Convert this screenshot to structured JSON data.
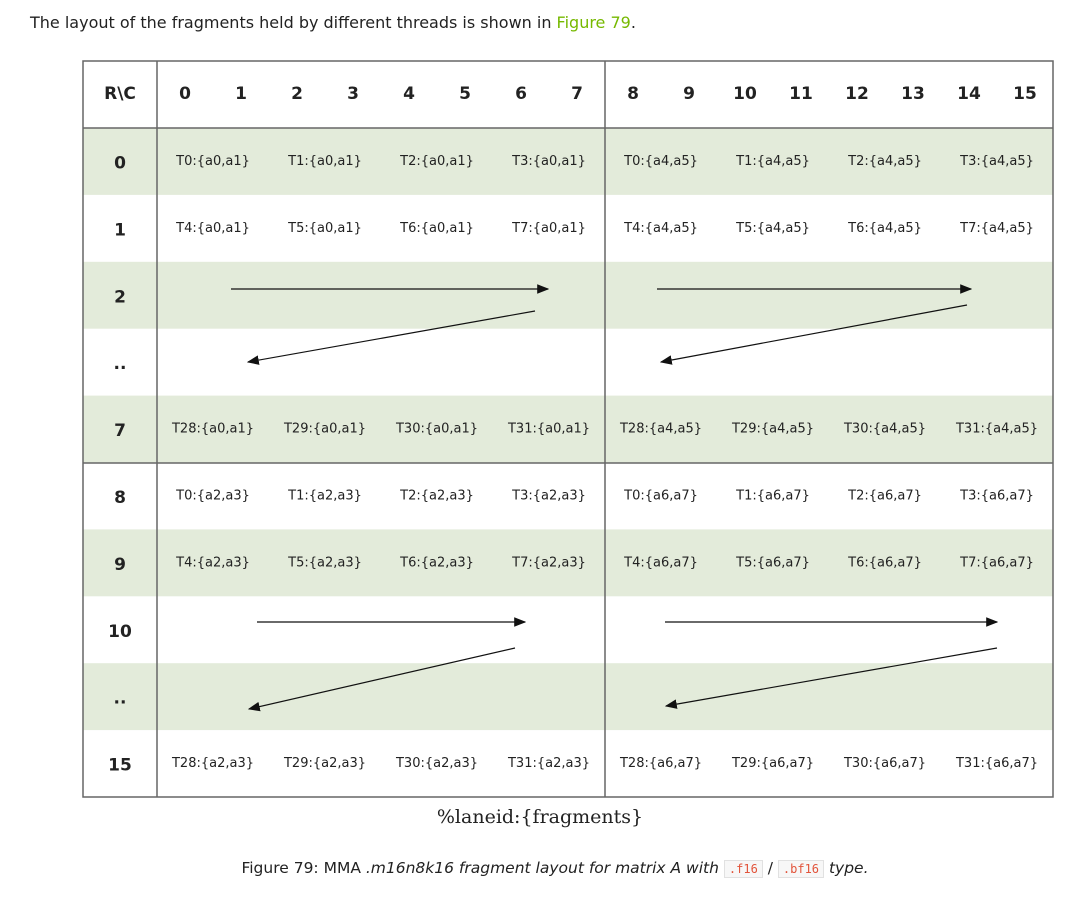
{
  "intro": {
    "text": "The layout of the fragments held by different threads is shown in ",
    "link": "Figure 79",
    "end": "."
  },
  "table": {
    "corner": "R\\C",
    "columns": [
      "0",
      "1",
      "2",
      "3",
      "4",
      "5",
      "6",
      "7",
      "8",
      "9",
      "10",
      "11",
      "12",
      "13",
      "14",
      "15"
    ],
    "rows": [
      {
        "label": "0",
        "cells": [
          "T0:{a0,a1}",
          "T1:{a0,a1}",
          "T2:{a0,a1}",
          "T3:{a0,a1}",
          "T0:{a4,a5}",
          "T1:{a4,a5}",
          "T2:{a4,a5}",
          "T3:{a4,a5}"
        ]
      },
      {
        "label": "1",
        "cells": [
          "T4:{a0,a1}",
          "T5:{a0,a1}",
          "T6:{a0,a1}",
          "T7:{a0,a1}",
          "T4:{a4,a5}",
          "T5:{a4,a5}",
          "T6:{a4,a5}",
          "T7:{a4,a5}"
        ]
      },
      {
        "label": "2"
      },
      {
        "label": ".."
      },
      {
        "label": "7",
        "cells": [
          "T28:{a0,a1}",
          "T29:{a0,a1}",
          "T30:{a0,a1}",
          "T31:{a0,a1}",
          "T28:{a4,a5}",
          "T29:{a4,a5}",
          "T30:{a4,a5}",
          "T31:{a4,a5}"
        ]
      },
      {
        "label": "8",
        "cells": [
          "T0:{a2,a3}",
          "T1:{a2,a3}",
          "T2:{a2,a3}",
          "T3:{a2,a3}",
          "T0:{a6,a7}",
          "T1:{a6,a7}",
          "T2:{a6,a7}",
          "T3:{a6,a7}"
        ]
      },
      {
        "label": "9",
        "cells": [
          "T4:{a2,a3}",
          "T5:{a2,a3}",
          "T6:{a2,a3}",
          "T7:{a2,a3}",
          "T4:{a6,a7}",
          "T5:{a6,a7}",
          "T6:{a6,a7}",
          "T7:{a6,a7}"
        ]
      },
      {
        "label": "10"
      },
      {
        "label": ".."
      },
      {
        "label": "15",
        "cells": [
          "T28:{a2,a3}",
          "T29:{a2,a3}",
          "T30:{a2,a3}",
          "T31:{a2,a3}",
          "T28:{a6,a7}",
          "T29:{a6,a7}",
          "T30:{a6,a7}",
          "T31:{a6,a7}"
        ]
      }
    ]
  },
  "legend": "%laneid:{fragments}",
  "caption": {
    "prefix": "Figure 79: MMA ",
    "italic": ".m16n8k16 fragment layout for matrix A with",
    "code1": ".f16",
    "sep": "/",
    "code2": ".bf16",
    "end": "type."
  }
}
